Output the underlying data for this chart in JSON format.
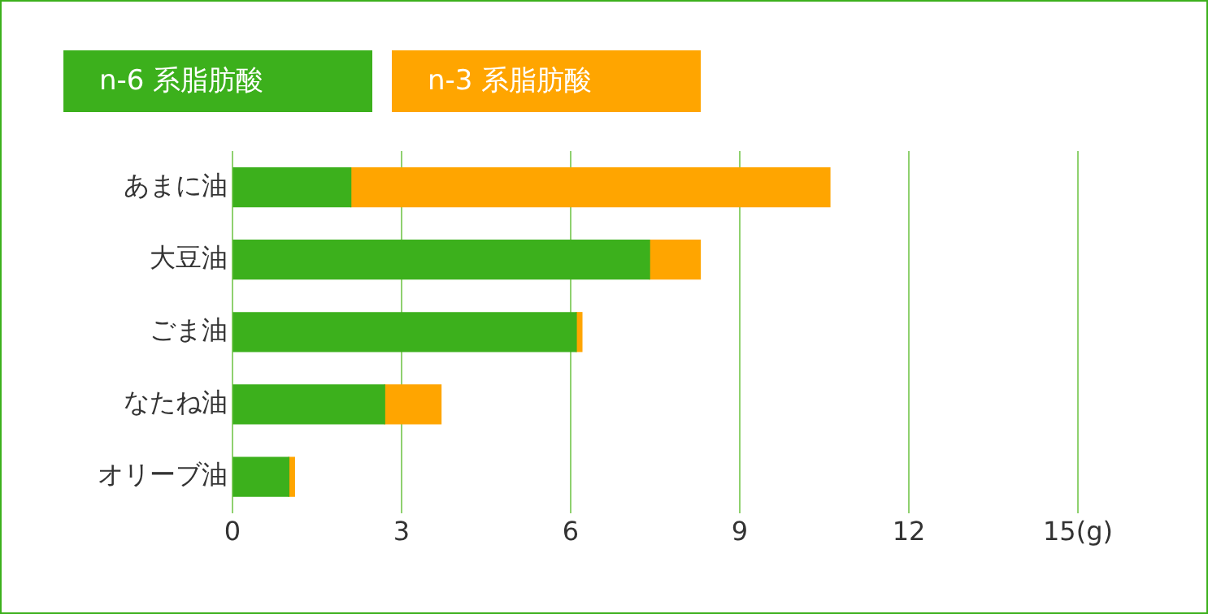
{
  "chart_data": {
    "type": "bar",
    "orientation": "horizontal",
    "stacked": true,
    "categories": [
      "あまに油",
      "大豆油",
      "ごま油",
      "なたね油",
      "オリーブ油"
    ],
    "series": [
      {
        "name": "n-6 系脂肪酸",
        "color": "#3cb01c",
        "values": [
          2.1,
          7.4,
          6.1,
          2.7,
          1.0
        ]
      },
      {
        "name": "n-3 系脂肪酸",
        "color": "#ffa500",
        "values": [
          8.5,
          0.9,
          0.1,
          1.0,
          0.1
        ]
      }
    ],
    "xlim": [
      0,
      15
    ],
    "xticks": [
      0,
      3,
      6,
      9,
      12,
      {
        "value": 15,
        "label": "15(g)"
      }
    ],
    "grid": "x",
    "legend": "top left"
  }
}
